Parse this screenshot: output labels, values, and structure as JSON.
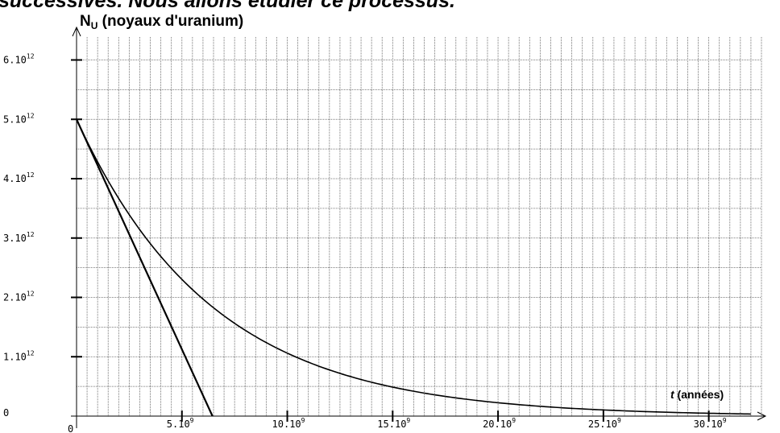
{
  "page": {
    "top_text": "successives. Nous allons étudier ce processus."
  },
  "chart_data": {
    "type": "line",
    "title": "",
    "ylabel": {
      "symbol": "N",
      "subscript": "U",
      "text": " (noyaux d'uranium)"
    },
    "xlabel": {
      "symbol": "t",
      "text": " (années)"
    },
    "xlim": [
      0,
      32500000000.0
    ],
    "ylim": [
      0,
      6400000000000.0
    ],
    "x_ticks": [
      {
        "value": 0,
        "mantissa": "0",
        "exponent": ""
      },
      {
        "value": 5000000000.0,
        "mantissa": "5.10",
        "exponent": "9"
      },
      {
        "value": 10000000000.0,
        "mantissa": "10.10",
        "exponent": "9"
      },
      {
        "value": 15000000000.0,
        "mantissa": "15.10",
        "exponent": "9"
      },
      {
        "value": 20000000000.0,
        "mantissa": "20.10",
        "exponent": "9"
      },
      {
        "value": 25000000000.0,
        "mantissa": "25.10",
        "exponent": "9"
      },
      {
        "value": 30000000000.0,
        "mantissa": "30.10",
        "exponent": "9"
      }
    ],
    "y_ticks": [
      {
        "value": 0,
        "mantissa": "0",
        "exponent": ""
      },
      {
        "value": 1000000000000.0,
        "mantissa": "1.10",
        "exponent": "12"
      },
      {
        "value": 2000000000000.0,
        "mantissa": "2.10",
        "exponent": "12"
      },
      {
        "value": 3000000000000.0,
        "mantissa": "3.10",
        "exponent": "12"
      },
      {
        "value": 4000000000000.0,
        "mantissa": "4.10",
        "exponent": "12"
      },
      {
        "value": 5000000000000.0,
        "mantissa": "5.10",
        "exponent": "12"
      },
      {
        "value": 6000000000000.0,
        "mantissa": "6.10",
        "exponent": "12"
      }
    ],
    "x_minor_step": 500000000.0,
    "y_minor_step": 500000000000.0,
    "grid": true,
    "grid_style": "dotted",
    "series": [
      {
        "kind": "decay_curve",
        "x": [
          0,
          2000000000.0,
          4000000000.0,
          5000000000.0,
          6000000000.0,
          8000000000.0,
          10000000000.0,
          12000000000.0,
          14000000000.0,
          15000000000.0,
          16000000000.0,
          18000000000.0,
          20000000000.0,
          22000000000.0,
          24000000000.0,
          25000000000.0,
          26000000000.0,
          28000000000.0,
          30000000000.0,
          32000000000.0
        ],
        "y": [
          5000000000000.0,
          3670000000000.0,
          2690000000000.0,
          2300000000000.0,
          1970000000000.0,
          1450000000000.0,
          1060000000000.0,
          780000000000.0,
          570000000000.0,
          490000000000.0,
          420000000000.0,
          310000000000.0,
          220000000000.0,
          160000000000.0,
          120000000000.0,
          100000000000.0,
          90000000000.0,
          65000000000.0,
          48000000000.0,
          35000000000.0
        ],
        "color": "#000000"
      },
      {
        "kind": "tangent_line",
        "x": [
          0,
          6450000000.0
        ],
        "y": [
          5000000000000.0,
          0
        ],
        "color": "#000000"
      }
    ]
  }
}
